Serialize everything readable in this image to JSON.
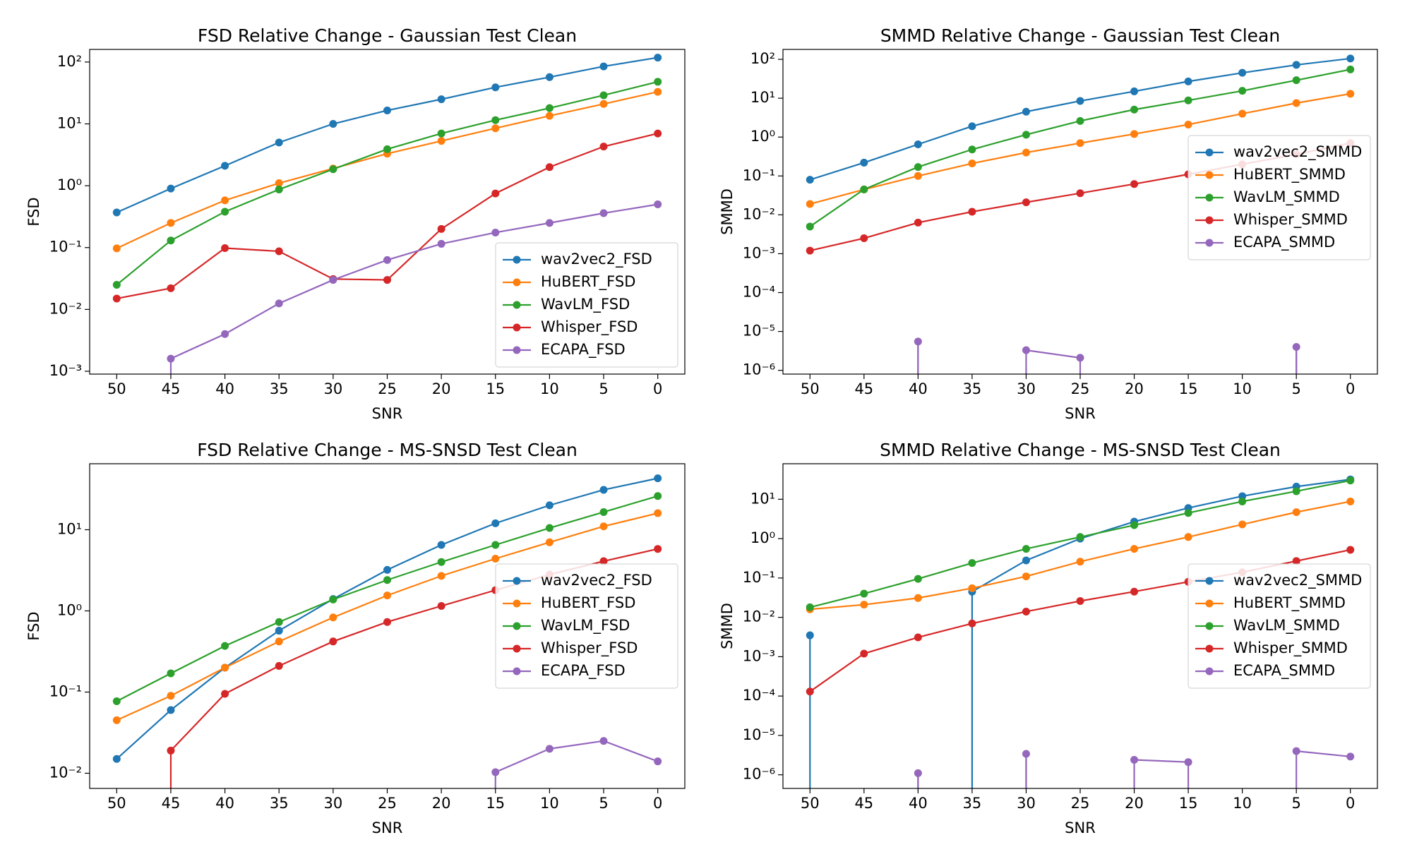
{
  "chart_data": [
    {
      "type": "line",
      "title": "FSD Relative Change - Gaussian Test Clean",
      "xlabel": "SNR",
      "ylabel": "FSD",
      "x": [
        50,
        45,
        40,
        35,
        30,
        25,
        20,
        15,
        10,
        5,
        0
      ],
      "xlim": [
        52.5,
        -2.5
      ],
      "xticks": [
        50,
        45,
        40,
        35,
        30,
        25,
        20,
        15,
        10,
        5,
        0
      ],
      "log_y": true,
      "ylim": [
        0.0009,
        160
      ],
      "yticks": [
        {
          "value": 0.001,
          "label": "10⁻³"
        },
        {
          "value": 0.01,
          "label": "10⁻²"
        },
        {
          "value": 0.1,
          "label": "10⁻¹"
        },
        {
          "value": 1,
          "label": "10⁰"
        },
        {
          "value": 10,
          "label": "10¹"
        },
        {
          "value": 100,
          "label": "10²"
        }
      ],
      "legend": "lower right",
      "series": [
        {
          "name": "wav2vec2_FSD",
          "color": "#1f77b4",
          "values": [
            0.37,
            0.9,
            2.1,
            5,
            10,
            16.5,
            25,
            39,
            57,
            85,
            118
          ]
        },
        {
          "name": "HuBERT_FSD",
          "color": "#ff7f0e",
          "values": [
            0.097,
            0.25,
            0.58,
            1.1,
            1.9,
            3.3,
            5.3,
            8.5,
            13.5,
            21,
            33
          ]
        },
        {
          "name": "WavLM_FSD",
          "color": "#2ca02c",
          "values": [
            0.025,
            0.13,
            0.38,
            0.87,
            1.85,
            3.9,
            7,
            11.5,
            18,
            29,
            48
          ]
        },
        {
          "name": "Whisper_FSD",
          "color": "#d62728",
          "values": [
            0.015,
            0.022,
            0.098,
            0.087,
            0.031,
            0.03,
            0.2,
            0.75,
            2,
            4.3,
            7
          ]
        },
        {
          "name": "ECAPA_FSD",
          "color": "#9467bd",
          "values": [
            0,
            0.0016,
            0.004,
            0.0125,
            0.03,
            0.063,
            0.115,
            0.175,
            0.25,
            0.36,
            0.5
          ]
        }
      ]
    },
    {
      "type": "line",
      "title": "SMMD Relative Change - Gaussian Test Clean",
      "xlabel": "SNR",
      "ylabel": "SMMD",
      "x": [
        50,
        45,
        40,
        35,
        30,
        25,
        20,
        15,
        10,
        5,
        0
      ],
      "xlim": [
        52.5,
        -2.5
      ],
      "xticks": [
        50,
        45,
        40,
        35,
        30,
        25,
        20,
        15,
        10,
        5,
        0
      ],
      "log_y": true,
      "ylim": [
        8e-07,
        180
      ],
      "yticks": [
        {
          "value": 1e-06,
          "label": "10⁻⁶"
        },
        {
          "value": 1e-05,
          "label": "10⁻⁵"
        },
        {
          "value": 0.0001,
          "label": "10⁻⁴"
        },
        {
          "value": 0.001,
          "label": "10⁻³"
        },
        {
          "value": 0.01,
          "label": "10⁻²"
        },
        {
          "value": 0.1,
          "label": "10⁻¹"
        },
        {
          "value": 1,
          "label": "10⁰"
        },
        {
          "value": 10,
          "label": "10¹"
        },
        {
          "value": 100,
          "label": "10²"
        }
      ],
      "legend": "center right",
      "series": [
        {
          "name": "wav2vec2_SMMD",
          "color": "#1f77b4",
          "values": [
            0.08,
            0.22,
            0.65,
            1.9,
            4.5,
            8.5,
            15,
            27,
            45,
            72,
            105
          ]
        },
        {
          "name": "HuBERT_SMMD",
          "color": "#ff7f0e",
          "values": [
            0.019,
            0.045,
            0.1,
            0.21,
            0.4,
            0.7,
            1.2,
            2.1,
            4,
            7.5,
            13
          ]
        },
        {
          "name": "WavLM_SMMD",
          "color": "#2ca02c",
          "values": [
            0.005,
            0.045,
            0.17,
            0.48,
            1.15,
            2.6,
            5.1,
            8.8,
            15.5,
            29,
            55
          ]
        },
        {
          "name": "Whisper_SMMD",
          "color": "#d62728",
          "values": [
            0.0012,
            0.0025,
            0.0063,
            0.012,
            0.021,
            0.036,
            0.062,
            0.11,
            0.2,
            0.36,
            0.7
          ]
        },
        {
          "name": "ECAPA_SMMD",
          "color": "#9467bd",
          "values": [
            0,
            0,
            5.5e-06,
            0,
            3.3e-06,
            2.1e-06,
            0,
            0,
            0,
            4e-06,
            0
          ]
        }
      ]
    },
    {
      "type": "line",
      "title": "FSD Relative Change - MS-SNSD Test Clean",
      "xlabel": "SNR",
      "ylabel": "FSD",
      "x": [
        50,
        45,
        40,
        35,
        30,
        25,
        20,
        15,
        10,
        5,
        0
      ],
      "xlim": [
        52.5,
        -2.5
      ],
      "xticks": [
        50,
        45,
        40,
        35,
        30,
        25,
        20,
        15,
        10,
        5,
        0
      ],
      "log_y": true,
      "ylim": [
        0.0065,
        65
      ],
      "yticks": [
        {
          "value": 0.01,
          "label": "10⁻²"
        },
        {
          "value": 0.1,
          "label": "10⁻¹"
        },
        {
          "value": 1,
          "label": "10⁰"
        },
        {
          "value": 10,
          "label": "10¹"
        }
      ],
      "legend": "center right",
      "series": [
        {
          "name": "wav2vec2_FSD",
          "color": "#1f77b4",
          "values": [
            0.015,
            0.06,
            0.2,
            0.57,
            1.4,
            3.2,
            6.5,
            12,
            20,
            31,
            43
          ]
        },
        {
          "name": "HuBERT_FSD",
          "color": "#ff7f0e",
          "values": [
            0.045,
            0.09,
            0.2,
            0.42,
            0.83,
            1.55,
            2.7,
            4.4,
            7,
            11,
            16
          ]
        },
        {
          "name": "WavLM_FSD",
          "color": "#2ca02c",
          "values": [
            0.077,
            0.17,
            0.37,
            0.73,
            1.38,
            2.4,
            4,
            6.5,
            10.5,
            16.5,
            26
          ]
        },
        {
          "name": "Whisper_FSD",
          "color": "#d62728",
          "values": [
            0,
            0.019,
            0.095,
            0.21,
            0.42,
            0.73,
            1.15,
            1.8,
            2.8,
            4.1,
            5.8
          ]
        },
        {
          "name": "ECAPA_FSD",
          "color": "#9467bd",
          "values": [
            0,
            0,
            0,
            0,
            0,
            0,
            0,
            0.0103,
            0.02,
            0.025,
            0.014
          ]
        }
      ]
    },
    {
      "type": "line",
      "title": "SMMD Relative Change - MS-SNSD Test Clean",
      "xlabel": "SNR",
      "ylabel": "SMMD",
      "x": [
        50,
        45,
        40,
        35,
        30,
        25,
        20,
        15,
        10,
        5,
        0
      ],
      "xlim": [
        52.5,
        -2.5
      ],
      "xticks": [
        50,
        45,
        40,
        35,
        30,
        25,
        20,
        15,
        10,
        5,
        0
      ],
      "log_y": true,
      "ylim": [
        4.5e-07,
        80
      ],
      "yticks": [
        {
          "value": 1e-06,
          "label": "10⁻⁶"
        },
        {
          "value": 1e-05,
          "label": "10⁻⁵"
        },
        {
          "value": 0.0001,
          "label": "10⁻⁴"
        },
        {
          "value": 0.001,
          "label": "10⁻³"
        },
        {
          "value": 0.01,
          "label": "10⁻²"
        },
        {
          "value": 0.1,
          "label": "10⁻¹"
        },
        {
          "value": 1,
          "label": "10⁰"
        },
        {
          "value": 10,
          "label": "10¹"
        }
      ],
      "legend": "center right",
      "series": [
        {
          "name": "wav2vec2_SMMD",
          "color": "#1f77b4",
          "values": [
            0.0035,
            0,
            0,
            0.045,
            0.28,
            1.0,
            2.7,
            6,
            12,
            21,
            32
          ]
        },
        {
          "name": "HuBERT_SMMD",
          "color": "#ff7f0e",
          "values": [
            0.016,
            0.021,
            0.031,
            0.055,
            0.11,
            0.26,
            0.55,
            1.1,
            2.3,
            4.7,
            8.8
          ]
        },
        {
          "name": "WavLM_SMMD",
          "color": "#2ca02c",
          "values": [
            0.018,
            0.04,
            0.095,
            0.24,
            0.55,
            1.1,
            2.2,
            4.5,
            8.8,
            16,
            30
          ]
        },
        {
          "name": "Whisper_SMMD",
          "color": "#d62728",
          "values": [
            0.00013,
            0.0012,
            0.0031,
            0.007,
            0.014,
            0.026,
            0.045,
            0.08,
            0.14,
            0.27,
            0.52
          ]
        },
        {
          "name": "ECAPA_SMMD",
          "color": "#9467bd",
          "values": [
            0,
            0,
            1.1e-06,
            0,
            3.4e-06,
            0,
            2.4e-06,
            2.1e-06,
            0,
            4e-06,
            2.9e-06
          ]
        }
      ]
    }
  ]
}
